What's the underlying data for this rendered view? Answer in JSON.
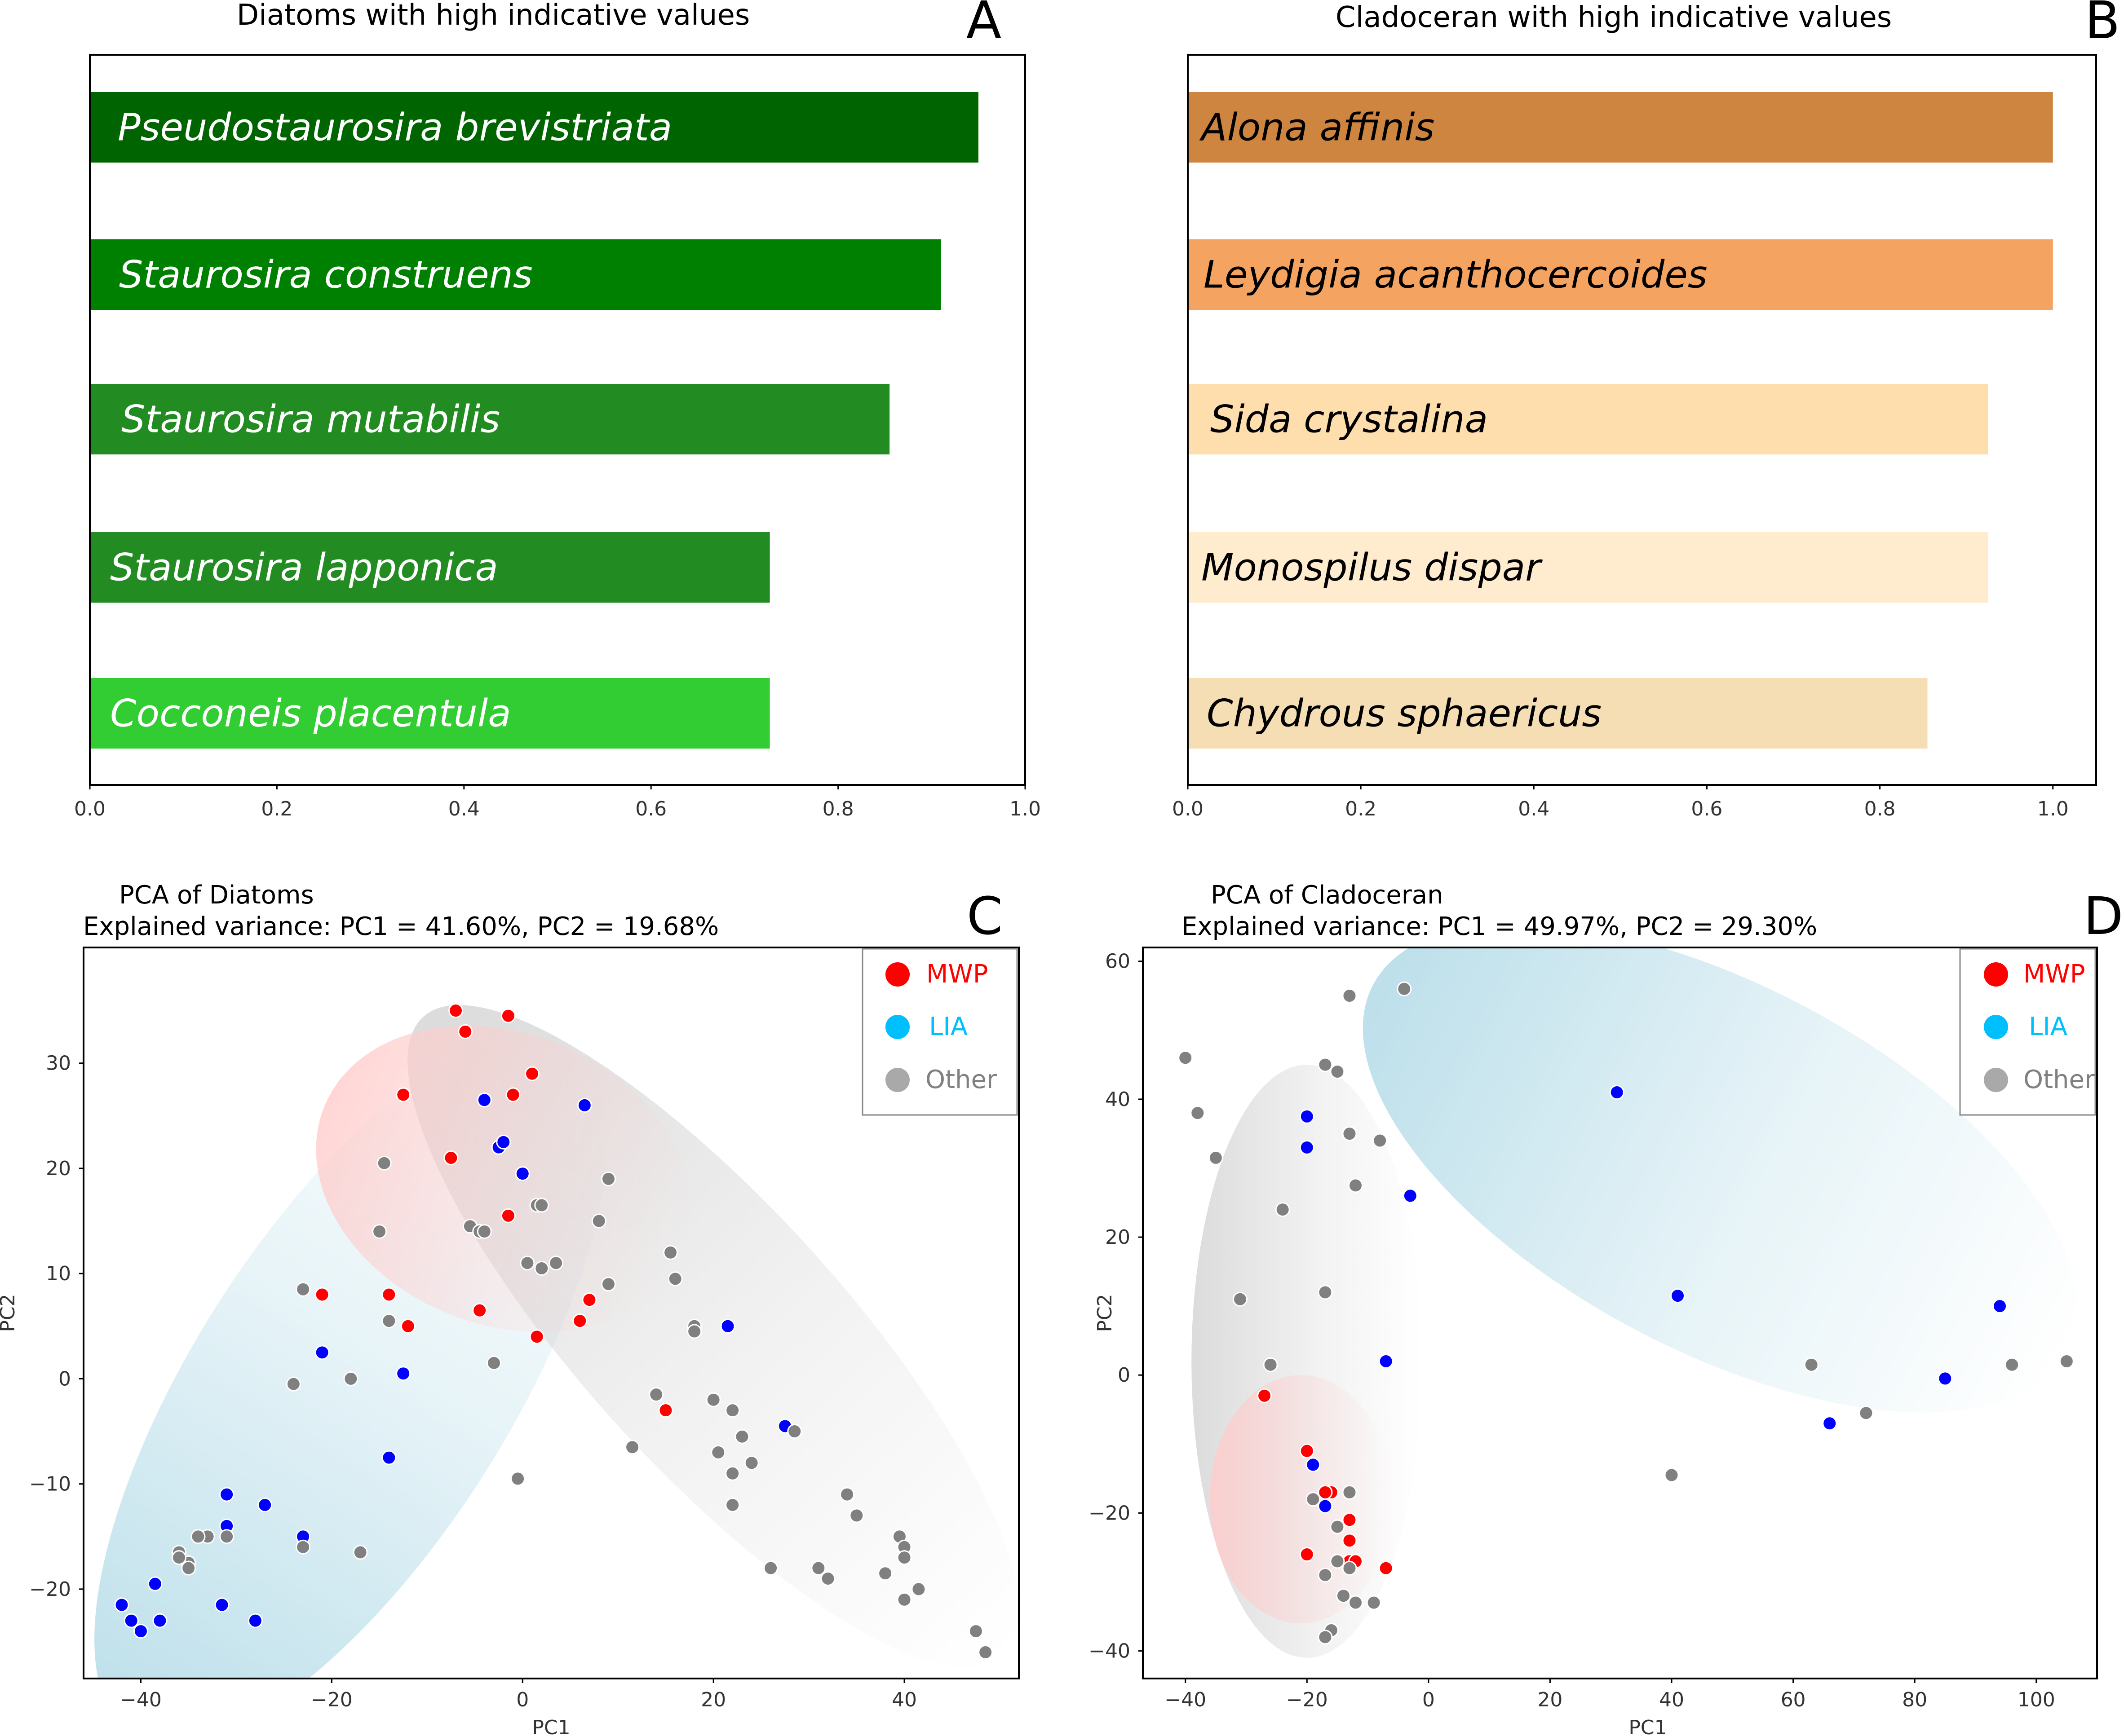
{
  "chart_data": [
    {
      "panel": "A",
      "type": "bar",
      "orientation": "horizontal",
      "title": "Diatoms with high indicative values",
      "categories": [
        "Pseudostaurosira brevistriata",
        "Staurosira construens",
        "Staurosira mutabilis",
        "Staurosira lapponica",
        "Cocconeis placentula"
      ],
      "values": [
        0.95,
        0.91,
        0.855,
        0.727,
        0.727
      ],
      "colors": [
        "#006400",
        "#008000",
        "#228b22",
        "#228b22",
        "#32cd32"
      ],
      "label_color": "#ffffff",
      "xlim": [
        0,
        1.0
      ],
      "xticks": [
        "0.0",
        "0.2",
        "0.4",
        "0.6",
        "0.8",
        "1.0"
      ]
    },
    {
      "panel": "B",
      "type": "bar",
      "orientation": "horizontal",
      "title": "Cladoceran with high indicative values",
      "categories": [
        "Alona affinis",
        "Leydigia acanthocercoides",
        "Sida crystalina",
        "Monospilus dispar",
        "Chydrous sphaericus"
      ],
      "values": [
        1.0,
        1.0,
        0.925,
        0.925,
        0.855
      ],
      "colors": [
        "#cd853f",
        "#f4a460",
        "#ffdead",
        "#ffebcd",
        "#f5deb3"
      ],
      "label_color": "#000000",
      "xlim": [
        0,
        1.05
      ],
      "xticks": [
        "0.0",
        "0.2",
        "0.4",
        "0.6",
        "0.8",
        "1.0"
      ]
    },
    {
      "panel": "C",
      "type": "scatter",
      "title": "PCA of Diatoms",
      "subtitle": "Explained variance: PC1 = 41.60%, PC2 = 19.68%",
      "xlabel": "PC1",
      "ylabel": "PC2",
      "xlim": [
        -46,
        52
      ],
      "ylim": [
        -28.5,
        41
      ],
      "xticks": [
        "−40",
        "−20",
        "0",
        "20",
        "40"
      ],
      "yticks": [
        "−20",
        "−10",
        "0",
        "10",
        "20",
        "30"
      ],
      "legend": {
        "position": "upper right",
        "items": [
          {
            "label": "MWP",
            "color": "#ff0000"
          },
          {
            "label": "LIA",
            "color": "#00bfff"
          },
          {
            "label": "Other",
            "color": "#a9a9a9"
          }
        ]
      },
      "ellipses": [
        {
          "group": "LIA",
          "color": "#add8e6",
          "cx": -18,
          "cy": -1,
          "rx": 40,
          "ry": 16,
          "angle": 55
        },
        {
          "group": "Other",
          "color": "#d3d3d3",
          "cx": 20,
          "cy": 4,
          "rx": 43,
          "ry": 13,
          "angle": -45
        },
        {
          "group": "MWP",
          "color": "#ffcccb",
          "cx": -2,
          "cy": 19,
          "rx": 20,
          "ry": 14,
          "angle": -20
        }
      ],
      "series": [
        {
          "name": "MWP",
          "color": "#ff0000",
          "points": [
            [
              -7,
              35
            ],
            [
              -6,
              33
            ],
            [
              -1.5,
              34.5
            ],
            [
              1,
              29
            ],
            [
              -1,
              27
            ],
            [
              -12.5,
              27
            ],
            [
              -7.5,
              21
            ],
            [
              -1.5,
              15.5
            ],
            [
              -14,
              8
            ],
            [
              -12,
              5
            ],
            [
              -4.5,
              6.5
            ],
            [
              1.5,
              4
            ],
            [
              6,
              5.5
            ],
            [
              7,
              7.5
            ],
            [
              -21,
              8
            ],
            [
              15,
              -3
            ]
          ]
        },
        {
          "name": "LIA",
          "color": "#0000ff",
          "points": [
            [
              -4,
              26.5
            ],
            [
              -2.5,
              22
            ],
            [
              -2,
              22.5
            ],
            [
              0,
              19.5
            ],
            [
              6.5,
              26
            ],
            [
              21.5,
              5
            ],
            [
              27.5,
              -4.5
            ],
            [
              -21,
              2.5
            ],
            [
              -12.5,
              0.5
            ],
            [
              -14,
              -7.5
            ],
            [
              -31,
              -11
            ],
            [
              -27,
              -12
            ],
            [
              -31,
              -14
            ],
            [
              -23,
              -15
            ],
            [
              -38.5,
              -19.5
            ],
            [
              -42,
              -21.5
            ],
            [
              -31.5,
              -21.5
            ],
            [
              -28,
              -23
            ],
            [
              -38,
              -23
            ],
            [
              -40,
              -24
            ],
            [
              -41,
              -23
            ]
          ]
        },
        {
          "name": "Other",
          "color": "#808080",
          "points": [
            [
              -14.5,
              20.5
            ],
            [
              -15,
              14
            ],
            [
              -5.5,
              14.5
            ],
            [
              -4.5,
              14
            ],
            [
              -4,
              14
            ],
            [
              0.5,
              11
            ],
            [
              1.5,
              16.5
            ],
            [
              2,
              16.5
            ],
            [
              2,
              10.5
            ],
            [
              3.5,
              11
            ],
            [
              8,
              15
            ],
            [
              9,
              19
            ],
            [
              9,
              9
            ],
            [
              15.5,
              12
            ],
            [
              16,
              9.5
            ],
            [
              18,
              5
            ],
            [
              18,
              4.5
            ],
            [
              -23,
              8.5
            ],
            [
              -14,
              5.5
            ],
            [
              -3,
              1.5
            ],
            [
              -18,
              0
            ],
            [
              -24,
              -0.5
            ],
            [
              14,
              -1.5
            ],
            [
              20,
              -2
            ],
            [
              22,
              -3
            ],
            [
              23,
              -5.5
            ],
            [
              28.5,
              -5
            ],
            [
              11.5,
              -6.5
            ],
            [
              20.5,
              -7
            ],
            [
              22,
              -9
            ],
            [
              24,
              -8
            ],
            [
              22,
              -12
            ],
            [
              -0.5,
              -9.5
            ],
            [
              34,
              -11
            ],
            [
              35,
              -13
            ],
            [
              39.5,
              -15
            ],
            [
              40,
              -16
            ],
            [
              40,
              -17
            ],
            [
              -17,
              -16.5
            ],
            [
              -23,
              -16
            ],
            [
              -36,
              -16.5
            ],
            [
              -35,
              -17.5
            ],
            [
              -33,
              -15
            ],
            [
              -34,
              -15
            ],
            [
              -36,
              -17
            ],
            [
              -35,
              -18
            ],
            [
              -31,
              -15
            ],
            [
              26,
              -18
            ],
            [
              31,
              -18
            ],
            [
              32,
              -19
            ],
            [
              38,
              -18.5
            ],
            [
              41.5,
              -20
            ],
            [
              40,
              -21
            ],
            [
              47.5,
              -24
            ],
            [
              48.5,
              -26
            ]
          ]
        }
      ]
    },
    {
      "panel": "D",
      "type": "scatter",
      "title": "PCA of Cladoceran",
      "subtitle": "Explained variance: PC1 = 49.97%, PC2 = 29.30%",
      "xlabel": "PC1",
      "ylabel": "PC2",
      "xlim": [
        -47,
        110
      ],
      "ylim": [
        -44,
        62
      ],
      "xticks": [
        "−40",
        "−20",
        "0",
        "20",
        "40",
        "60",
        "80",
        "100"
      ],
      "yticks": [
        "−40",
        "−20",
        "0",
        "20",
        "40",
        "60"
      ],
      "legend": {
        "position": "upper right",
        "items": [
          {
            "label": "MWP",
            "color": "#ff0000"
          },
          {
            "label": "LIA",
            "color": "#00bfff"
          },
          {
            "label": "Other",
            "color": "#a9a9a9"
          }
        ]
      },
      "ellipses": [
        {
          "group": "LIA",
          "color": "#add8e6",
          "cx": 48,
          "cy": 30,
          "rx": 63,
          "ry": 27,
          "angle": -25
        },
        {
          "group": "Other",
          "color": "#d3d3d3",
          "cx": -20,
          "cy": 2,
          "rx": 19,
          "ry": 43,
          "angle": 0
        },
        {
          "group": "MWP",
          "color": "#ffcccb",
          "cx": -21,
          "cy": -18,
          "rx": 15,
          "ry": 18,
          "angle": 0
        }
      ],
      "series": [
        {
          "name": "MWP",
          "color": "#ff0000",
          "points": [
            [
              -27,
              -3
            ],
            [
              -20,
              -11
            ],
            [
              -16,
              -17
            ],
            [
              -17,
              -17
            ],
            [
              -13,
              -21
            ],
            [
              -13,
              -24
            ],
            [
              -20,
              -26
            ],
            [
              -13,
              -27
            ],
            [
              -12,
              -27
            ],
            [
              -7,
              -28
            ]
          ]
        },
        {
          "name": "LIA",
          "color": "#0000ff",
          "points": [
            [
              -20,
              37.5
            ],
            [
              -20,
              33
            ],
            [
              -3,
              26
            ],
            [
              -7,
              2
            ],
            [
              -19,
              -13
            ],
            [
              -17,
              -19
            ],
            [
              31,
              41
            ],
            [
              41,
              11.5
            ],
            [
              94,
              10
            ],
            [
              85,
              -0.5
            ],
            [
              66,
              -7
            ]
          ]
        },
        {
          "name": "Other",
          "color": "#808080",
          "points": [
            [
              -4,
              56
            ],
            [
              -13,
              55
            ],
            [
              -40,
              46
            ],
            [
              -17,
              45
            ],
            [
              -15,
              44
            ],
            [
              -38,
              38
            ],
            [
              -13,
              35
            ],
            [
              -8,
              34
            ],
            [
              -35,
              31.5
            ],
            [
              -12,
              27.5
            ],
            [
              -24,
              24
            ],
            [
              -17,
              12
            ],
            [
              -31,
              11
            ],
            [
              -26,
              1.5
            ],
            [
              63,
              1.5
            ],
            [
              96,
              1.5
            ],
            [
              105,
              2
            ],
            [
              72,
              -5.5
            ],
            [
              40,
              -14.5
            ],
            [
              -19,
              -18
            ],
            [
              -13,
              -17
            ],
            [
              -15,
              -22
            ],
            [
              -15,
              -27
            ],
            [
              -13,
              -28
            ],
            [
              -17,
              -29
            ],
            [
              -14,
              -32
            ],
            [
              -12,
              -33
            ],
            [
              -9,
              -33
            ],
            [
              -16,
              -37
            ],
            [
              -17,
              -38
            ]
          ]
        }
      ]
    }
  ]
}
